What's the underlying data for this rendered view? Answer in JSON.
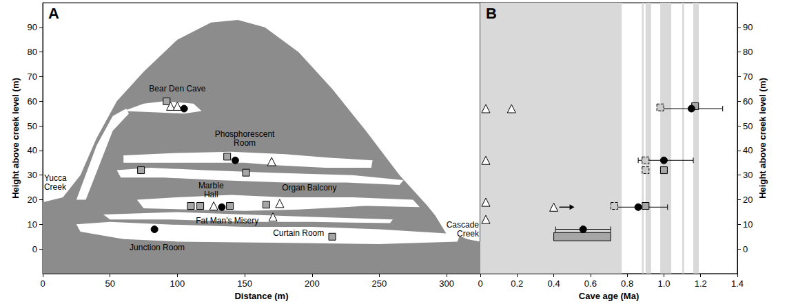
{
  "chart_data": [
    {
      "panel": "A",
      "type": "scatter",
      "xlabel": "Distance (m)",
      "ylabel": "Height above creek level (m)",
      "xlim": [
        0,
        325
      ],
      "xticks": [
        0,
        50,
        100,
        150,
        200,
        250,
        300
      ],
      "ylim": [
        -10,
        100
      ],
      "yticks": [
        0,
        10,
        20,
        30,
        40,
        50,
        60,
        70,
        80,
        90
      ],
      "grid": false,
      "series": [
        {
          "marker": "square",
          "color": "#a6a6a6",
          "x": [
            92,
            137,
            73,
            151,
            110,
            117,
            139,
            166,
            215
          ],
          "y": [
            60,
            37.5,
            32,
            31,
            17.5,
            17.5,
            17.5,
            18,
            5
          ]
        },
        {
          "marker": "triangle",
          "color": "#ffffff",
          "x": [
            95,
            100,
            127,
            170,
            176,
            171
          ],
          "y": [
            58,
            58,
            17.5,
            35.5,
            18.5,
            13
          ]
        },
        {
          "marker": "circle",
          "color": "#000000",
          "x": [
            105,
            143,
            133,
            83
          ],
          "y": [
            57,
            36,
            17,
            8
          ]
        }
      ],
      "annotations": [
        {
          "text": "Bear Den Cave",
          "x": 100,
          "y": 65
        },
        {
          "text": "Phosphorescent Room",
          "x": 150,
          "y": 45
        },
        {
          "text": "Yucca Creek",
          "x": 1,
          "y": 27
        },
        {
          "text": "Marble Hall",
          "x": 125,
          "y": 24
        },
        {
          "text": "Organ Balcony",
          "x": 198,
          "y": 25
        },
        {
          "text": "Fat Man's Misery",
          "x": 137,
          "y": 11.5
        },
        {
          "text": "Curtain Room",
          "x": 190,
          "y": 6.5
        },
        {
          "text": "Junction Room",
          "x": 85,
          "y": 0.5
        },
        {
          "text": "Cascade Creek",
          "x": 324,
          "y": 8
        }
      ]
    },
    {
      "panel": "B",
      "type": "scatter",
      "xlabel": "Cave age (Ma)",
      "ylabel": "Height above creek level (m)",
      "xlim": [
        0,
        1.4
      ],
      "xticks": [
        0,
        0.2,
        0.4,
        0.6,
        0.8,
        {
          "value": 1,
          "label": "1.0"
        },
        1.2,
        1.4
      ],
      "ylim": [
        -10,
        100
      ],
      "yticks": [
        0,
        10,
        20,
        30,
        40,
        50,
        60,
        70,
        80,
        90
      ],
      "grid": false,
      "shaded_intervals": [
        [
          0,
          0.77
        ],
        [
          0.88,
          0.89
        ],
        [
          0.9,
          0.93
        ],
        [
          0.98,
          1.04
        ],
        [
          1.1,
          1.11
        ],
        [
          1.16,
          1.19
        ]
      ],
      "series": [
        {
          "marker": "triangle",
          "color": "#ffffff",
          "x": [
            0.03,
            0.17,
            0.03,
            0.03,
            0.03,
            0.4
          ],
          "y": [
            57,
            57,
            36,
            19,
            12,
            17
          ],
          "lower_limit": [
            false,
            false,
            false,
            false,
            false,
            true
          ]
        },
        {
          "marker": "square",
          "color": "#cccccc",
          "line_style": "dashed",
          "x": [
            0.98,
            0.9,
            0.9,
            0.73
          ],
          "y": [
            57.5,
            36,
            32,
            17.5
          ]
        },
        {
          "marker": "square",
          "color": "#a6a6a6",
          "x": [
            1.17,
            1,
            0.9
          ],
          "y": [
            58,
            32,
            17.5
          ]
        },
        {
          "type": "range",
          "color": "#a6a6a6",
          "x_low": [
            0.4
          ],
          "x_high": [
            0.71
          ],
          "y": [
            5
          ]
        },
        {
          "marker": "circle",
          "color": "#000000",
          "x": [
            1.15,
            1,
            0.86,
            0.56
          ],
          "y": [
            57,
            36,
            17,
            8
          ],
          "x_low": [
            0.99,
            0.86,
            0.72,
            0.41
          ],
          "x_high": [
            1.32,
            1.16,
            1.02,
            0.71
          ]
        }
      ]
    }
  ]
}
